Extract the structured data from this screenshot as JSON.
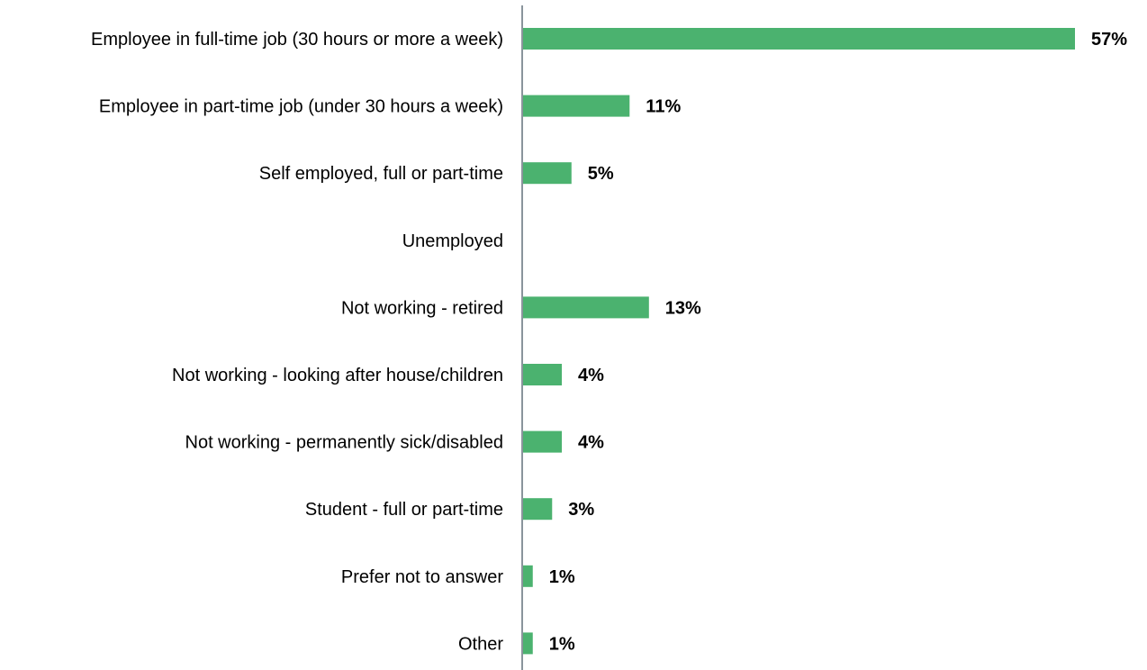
{
  "chart_data": {
    "type": "bar",
    "orientation": "horizontal",
    "categories": [
      "Employee in full-time job (30 hours or more a week)",
      "Employee in part-time job (under 30 hours a week)",
      "Self employed, full or part-time",
      "Unemployed",
      "Not working - retired",
      "Not working - looking after house/children",
      "Not working - permanently sick/disabled",
      "Student - full or part-time",
      "Prefer not to answer",
      "Other"
    ],
    "values": [
      57,
      11,
      5,
      0,
      13,
      4,
      4,
      3,
      1,
      1
    ],
    "value_labels": [
      "57%",
      "11%",
      "5%",
      "",
      "13%",
      "4%",
      "4%",
      "3%",
      "1%",
      "1%"
    ],
    "unit": "%",
    "xlim": [
      0,
      57
    ],
    "grid": false,
    "legend": "none",
    "colors": {
      "bar": "#4bb26f",
      "axis": "#8a949c",
      "text": "#000000"
    }
  }
}
